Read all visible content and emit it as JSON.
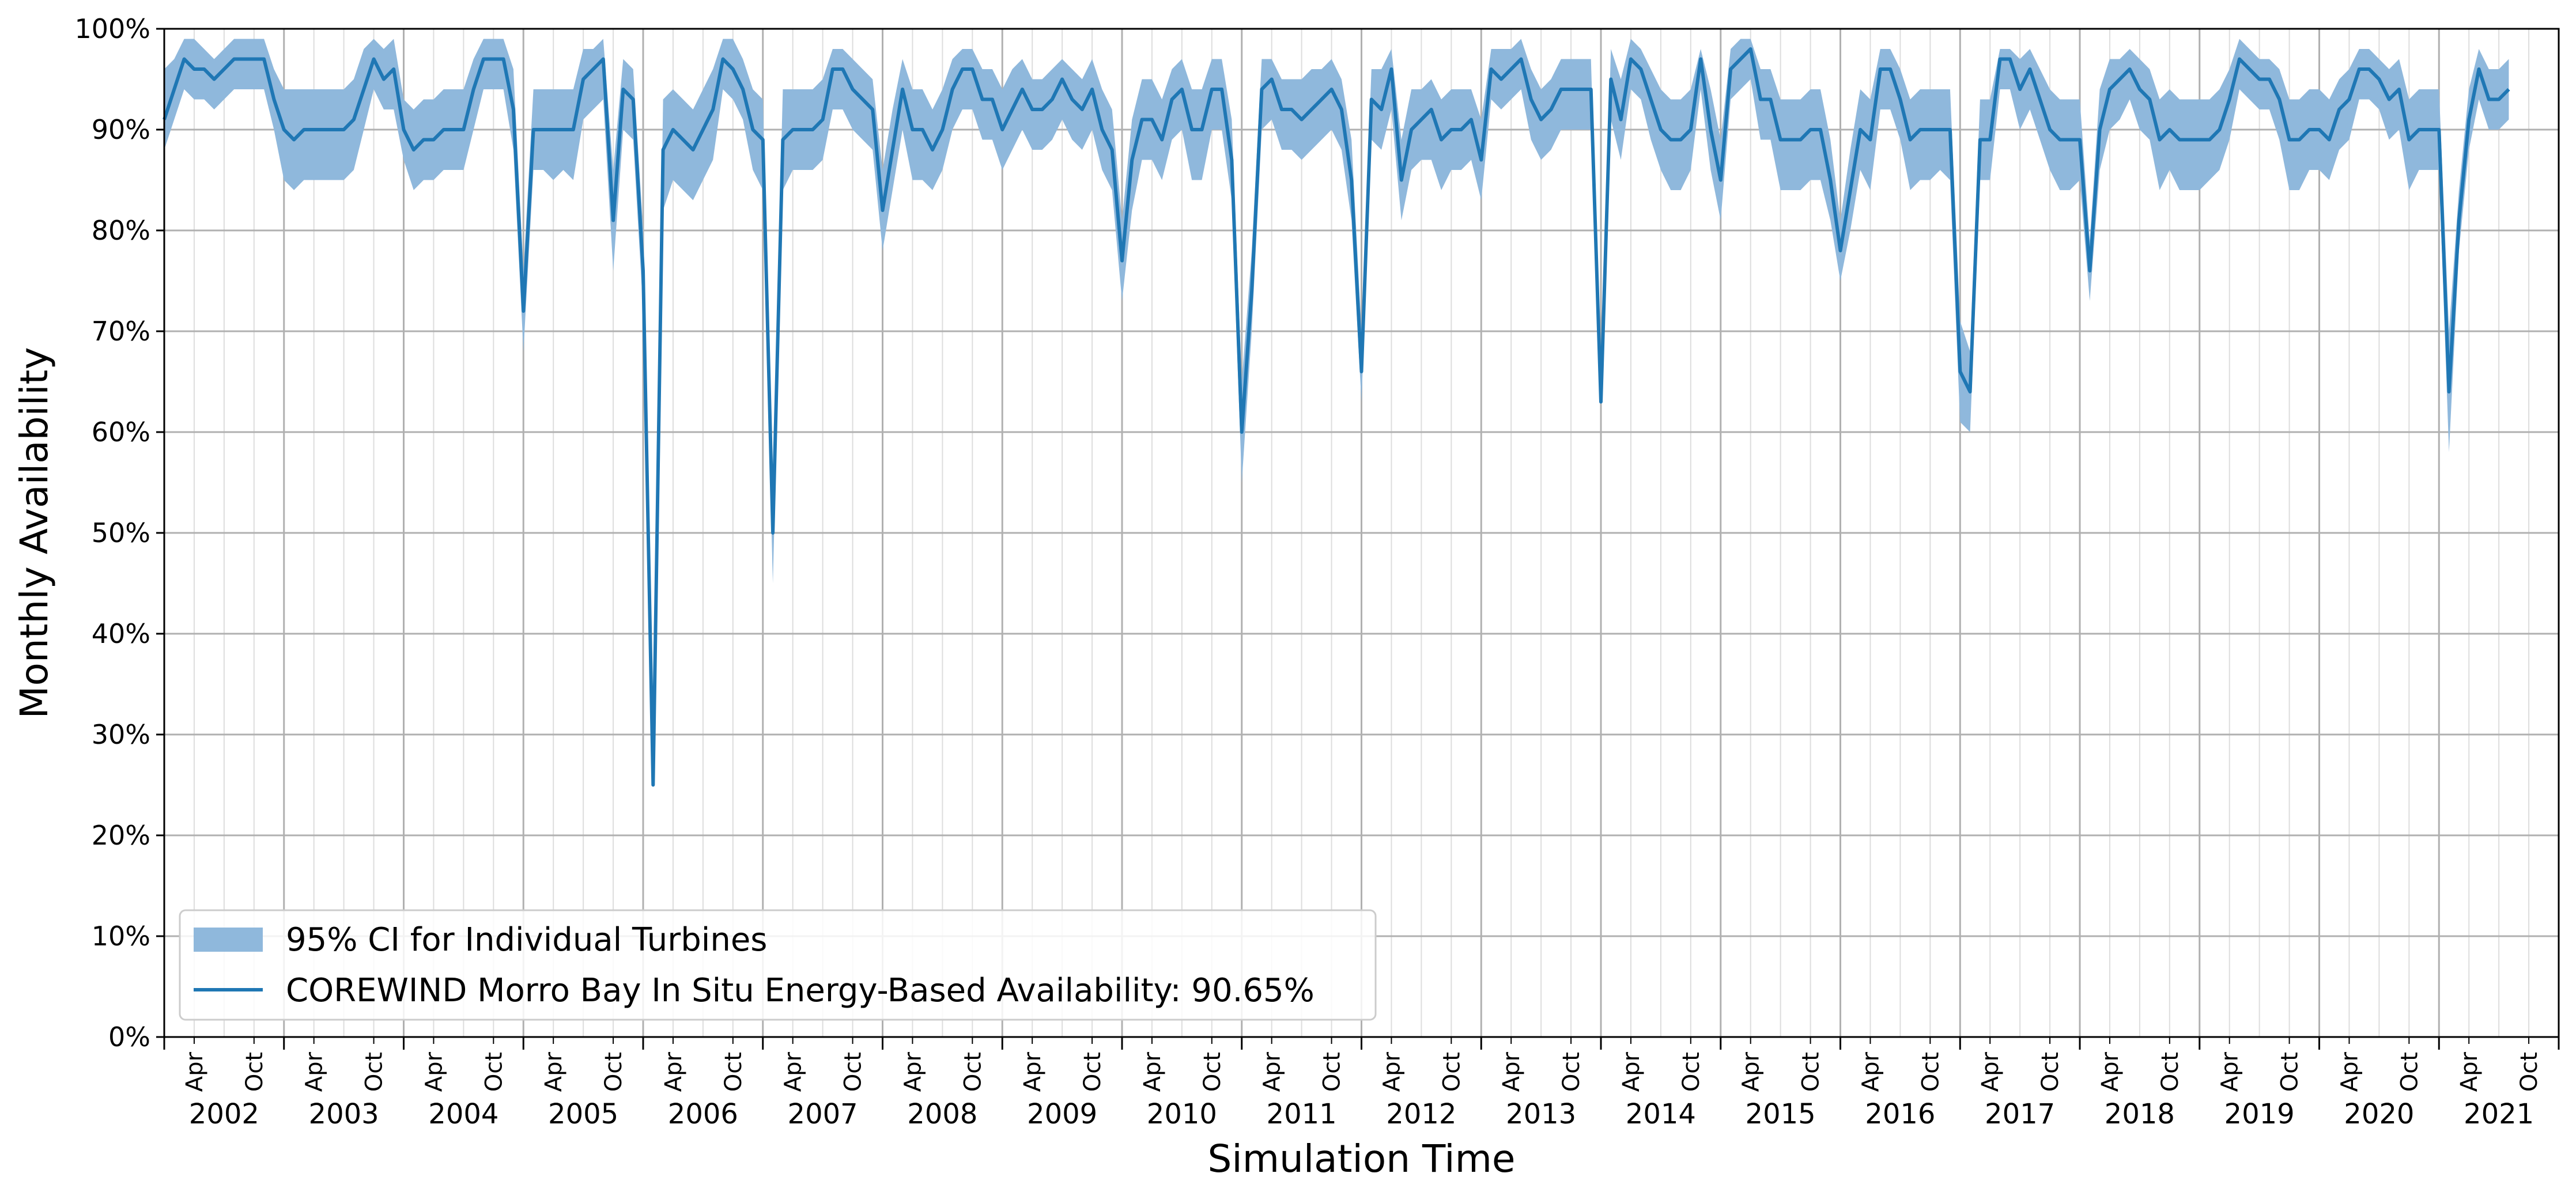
{
  "chart_data": {
    "type": "line",
    "xlabel": "Simulation Time",
    "ylabel": "Monthly Availability",
    "ylim": [
      0,
      100
    ],
    "yticks": [
      "0%",
      "10%",
      "20%",
      "30%",
      "40%",
      "50%",
      "60%",
      "70%",
      "80%",
      "90%",
      "100%"
    ],
    "x_start": "2002-01",
    "minor_tick_labels": [
      "Apr",
      "Oct"
    ],
    "years": [
      "2002",
      "2003",
      "2004",
      "2005",
      "2006",
      "2007",
      "2008",
      "2009",
      "2010",
      "2011",
      "2012",
      "2013",
      "2014",
      "2015",
      "2016",
      "2017",
      "2018",
      "2019",
      "2020",
      "2021"
    ],
    "grid": true,
    "legend_placement": "lower-left",
    "colors": {
      "line": "#1f77b4",
      "band": "#8fb8dc"
    },
    "series": [
      {
        "name": "COREWIND Morro Bay In Situ Energy-Based Availability: 90.65%",
        "role": "line",
        "values": [
          91,
          94,
          97,
          96,
          96,
          95,
          96,
          97,
          97,
          97,
          97,
          93,
          90,
          89,
          90,
          90,
          90,
          90,
          90,
          91,
          94,
          97,
          95,
          96,
          90,
          88,
          89,
          89,
          90,
          90,
          90,
          94,
          97,
          97,
          97,
          92,
          72,
          90,
          90,
          90,
          90,
          90,
          95,
          96,
          97,
          81,
          94,
          93,
          76,
          25,
          88,
          90,
          89,
          88,
          90,
          92,
          97,
          96,
          94,
          90,
          89,
          50,
          89,
          90,
          90,
          90,
          91,
          96,
          96,
          94,
          93,
          92,
          82,
          88,
          94,
          90,
          90,
          88,
          90,
          94,
          96,
          96,
          93,
          93,
          90,
          92,
          94,
          92,
          92,
          93,
          95,
          93,
          92,
          94,
          90,
          88,
          77,
          87,
          91,
          91,
          89,
          93,
          94,
          90,
          90,
          94,
          94,
          87,
          60,
          74,
          94,
          95,
          92,
          92,
          91,
          92,
          93,
          94,
          92,
          85,
          66,
          93,
          92,
          96,
          85,
          90,
          91,
          92,
          89,
          90,
          90,
          91,
          87,
          96,
          95,
          96,
          97,
          93,
          91,
          92,
          94,
          94,
          94,
          94,
          63,
          95,
          91,
          97,
          96,
          93,
          90,
          89,
          89,
          90,
          97,
          90,
          85,
          96,
          97,
          98,
          93,
          93,
          89,
          89,
          89,
          90,
          90,
          85,
          78,
          84,
          90,
          89,
          96,
          96,
          93,
          89,
          90,
          90,
          90,
          90,
          66,
          64,
          89,
          89,
          97,
          97,
          94,
          96,
          93,
          90,
          89,
          89,
          89,
          76,
          90,
          94,
          95,
          96,
          94,
          93,
          89,
          90,
          89,
          89,
          89,
          89,
          90,
          93,
          97,
          96,
          95,
          95,
          93,
          89,
          89,
          90,
          90,
          89,
          92,
          93,
          96,
          96,
          95,
          93,
          94,
          89,
          90,
          90,
          90,
          64,
          81,
          91,
          96,
          93,
          93,
          94
        ]
      },
      {
        "name": "95% CI for Individual Turbines",
        "role": "band_lower",
        "values": [
          88,
          91,
          94,
          93,
          93,
          92,
          93,
          94,
          94,
          94,
          94,
          90,
          85,
          84,
          85,
          85,
          85,
          85,
          85,
          86,
          90,
          94,
          92,
          92,
          87,
          84,
          85,
          85,
          86,
          86,
          86,
          90,
          94,
          94,
          94,
          88,
          68,
          86,
          86,
          85,
          86,
          85,
          91,
          92,
          93,
          76,
          90,
          89,
          72,
          25,
          82,
          85,
          84,
          83,
          85,
          87,
          94,
          93,
          91,
          86,
          84,
          45,
          84,
          86,
          86,
          86,
          87,
          92,
          92,
          90,
          89,
          88,
          78,
          84,
          90,
          85,
          85,
          84,
          86,
          90,
          92,
          92,
          89,
          89,
          86,
          88,
          90,
          88,
          88,
          89,
          91,
          89,
          88,
          90,
          86,
          84,
          73,
          82,
          87,
          87,
          85,
          89,
          90,
          85,
          85,
          90,
          90,
          83,
          55,
          70,
          90,
          91,
          88,
          88,
          87,
          88,
          89,
          90,
          88,
          81,
          63,
          89,
          88,
          92,
          81,
          86,
          87,
          87,
          84,
          86,
          86,
          87,
          83,
          93,
          92,
          93,
          94,
          89,
          87,
          88,
          90,
          90,
          90,
          90,
          63,
          91,
          87,
          94,
          93,
          89,
          86,
          84,
          84,
          86,
          94,
          86,
          81,
          93,
          94,
          95,
          89,
          89,
          84,
          84,
          84,
          85,
          85,
          81,
          75,
          80,
          86,
          84,
          92,
          92,
          89,
          84,
          85,
          85,
          86,
          85,
          61,
          60,
          85,
          85,
          94,
          94,
          90,
          92,
          89,
          86,
          84,
          84,
          85,
          73,
          86,
          90,
          91,
          93,
          90,
          89,
          84,
          86,
          84,
          84,
          84,
          85,
          86,
          89,
          94,
          93,
          92,
          92,
          89,
          84,
          84,
          86,
          86,
          85,
          88,
          89,
          93,
          93,
          92,
          89,
          90,
          84,
          86,
          86,
          86,
          58,
          78,
          88,
          93,
          90,
          90,
          91
        ]
      },
      {
        "name": "95% CI for Individual Turbines",
        "role": "band_upper",
        "values": [
          96,
          97,
          99,
          99,
          98,
          97,
          98,
          99,
          99,
          99,
          99,
          96,
          94,
          94,
          94,
          94,
          94,
          94,
          94,
          95,
          98,
          99,
          98,
          99,
          93,
          92,
          93,
          93,
          94,
          94,
          94,
          97,
          99,
          99,
          99,
          96,
          76,
          94,
          94,
          94,
          94,
          94,
          98,
          98,
          99,
          86,
          97,
          96,
          80,
          26,
          93,
          94,
          93,
          92,
          94,
          96,
          99,
          99,
          97,
          94,
          93,
          55,
          94,
          94,
          94,
          94,
          95,
          98,
          98,
          97,
          96,
          95,
          86,
          92,
          97,
          94,
          94,
          92,
          94,
          97,
          98,
          98,
          96,
          96,
          94,
          96,
          97,
          95,
          95,
          96,
          97,
          96,
          95,
          97,
          94,
          92,
          81,
          91,
          95,
          95,
          93,
          96,
          97,
          94,
          94,
          97,
          97,
          91,
          65,
          78,
          97,
          97,
          95,
          95,
          95,
          96,
          96,
          97,
          95,
          89,
          70,
          96,
          96,
          98,
          89,
          94,
          94,
          95,
          93,
          94,
          94,
          94,
          91,
          98,
          98,
          98,
          99,
          96,
          94,
          95,
          97,
          97,
          97,
          97,
          64,
          98,
          95,
          99,
          98,
          96,
          94,
          93,
          93,
          94,
          98,
          94,
          89,
          98,
          99,
          99,
          96,
          96,
          93,
          93,
          93,
          94,
          94,
          89,
          81,
          88,
          94,
          93,
          98,
          98,
          96,
          93,
          94,
          94,
          94,
          94,
          71,
          68,
          93,
          93,
          98,
          98,
          97,
          98,
          96,
          94,
          93,
          93,
          93,
          79,
          94,
          97,
          97,
          98,
          97,
          96,
          93,
          94,
          93,
          93,
          93,
          93,
          94,
          96,
          99,
          98,
          97,
          97,
          96,
          93,
          93,
          94,
          94,
          93,
          95,
          96,
          98,
          98,
          97,
          96,
          97,
          93,
          94,
          94,
          94,
          70,
          84,
          94,
          98,
          96,
          96,
          97
        ]
      }
    ],
    "legend": [
      {
        "label": "95% CI for Individual Turbines",
        "kind": "band"
      },
      {
        "label": "COREWIND Morro Bay In Situ Energy-Based Availability: 90.65%",
        "kind": "line"
      }
    ]
  }
}
